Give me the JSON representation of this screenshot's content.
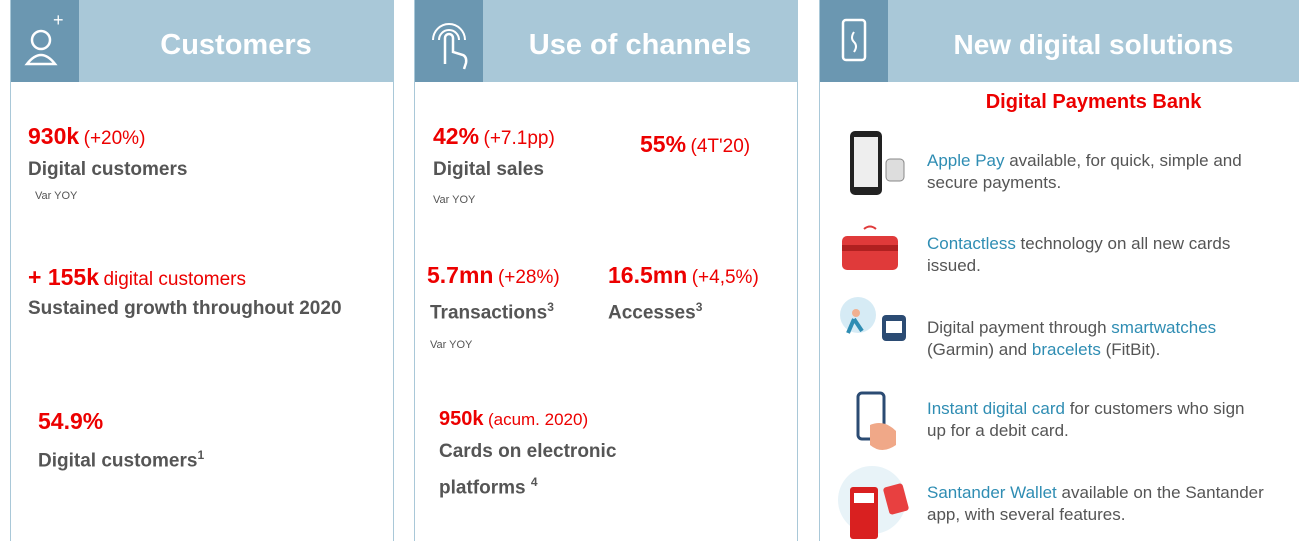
{
  "panels": [
    {
      "title": "Customers",
      "blocks": [
        {
          "value": "930k",
          "note": "(+20%)",
          "label": "Digital customers",
          "sub": "Var YOY"
        },
        {
          "value": "+ 155k",
          "note": "digital  customers",
          "label": "Sustained growth throughout 2020"
        },
        {
          "value": "54.9%",
          "label": "Digital customers",
          "sup": "1"
        }
      ]
    },
    {
      "title": "Use of channels",
      "blocks": [
        {
          "value": "42%",
          "note": "(+7.1pp)",
          "label": "Digital sales",
          "sub": "Var YOY"
        },
        {
          "value": "55%",
          "note": "(4T'20)"
        },
        {
          "value": "5.7mn",
          "note": "(+28%)",
          "label": "Transactions",
          "sup": "3",
          "sub": "Var YOY"
        },
        {
          "value": "16.5mn",
          "note": "(+4,5%)",
          "label": "Accesses",
          "sup": "3"
        },
        {
          "value": "950k",
          "note": "(acum. 2020)",
          "label": "Cards on electronic platforms",
          "sup": "4"
        }
      ]
    },
    {
      "title": "New digital solutions",
      "subtitle": "Digital Payments Bank",
      "items": [
        [
          "Apple Pay",
          " available, for quick, simple and secure payments."
        ],
        [
          "Contactless",
          " technology on all new cards issued."
        ],
        [
          "Digital payment through ",
          "smartwatches",
          " (Garmin) and ",
          "bracelets",
          " (FitBit)."
        ],
        [
          "Instant digital card",
          " for customers who sign up for a debit card."
        ],
        [
          "Santander Wallet",
          " available on the Santander app, with several features."
        ]
      ]
    }
  ]
}
